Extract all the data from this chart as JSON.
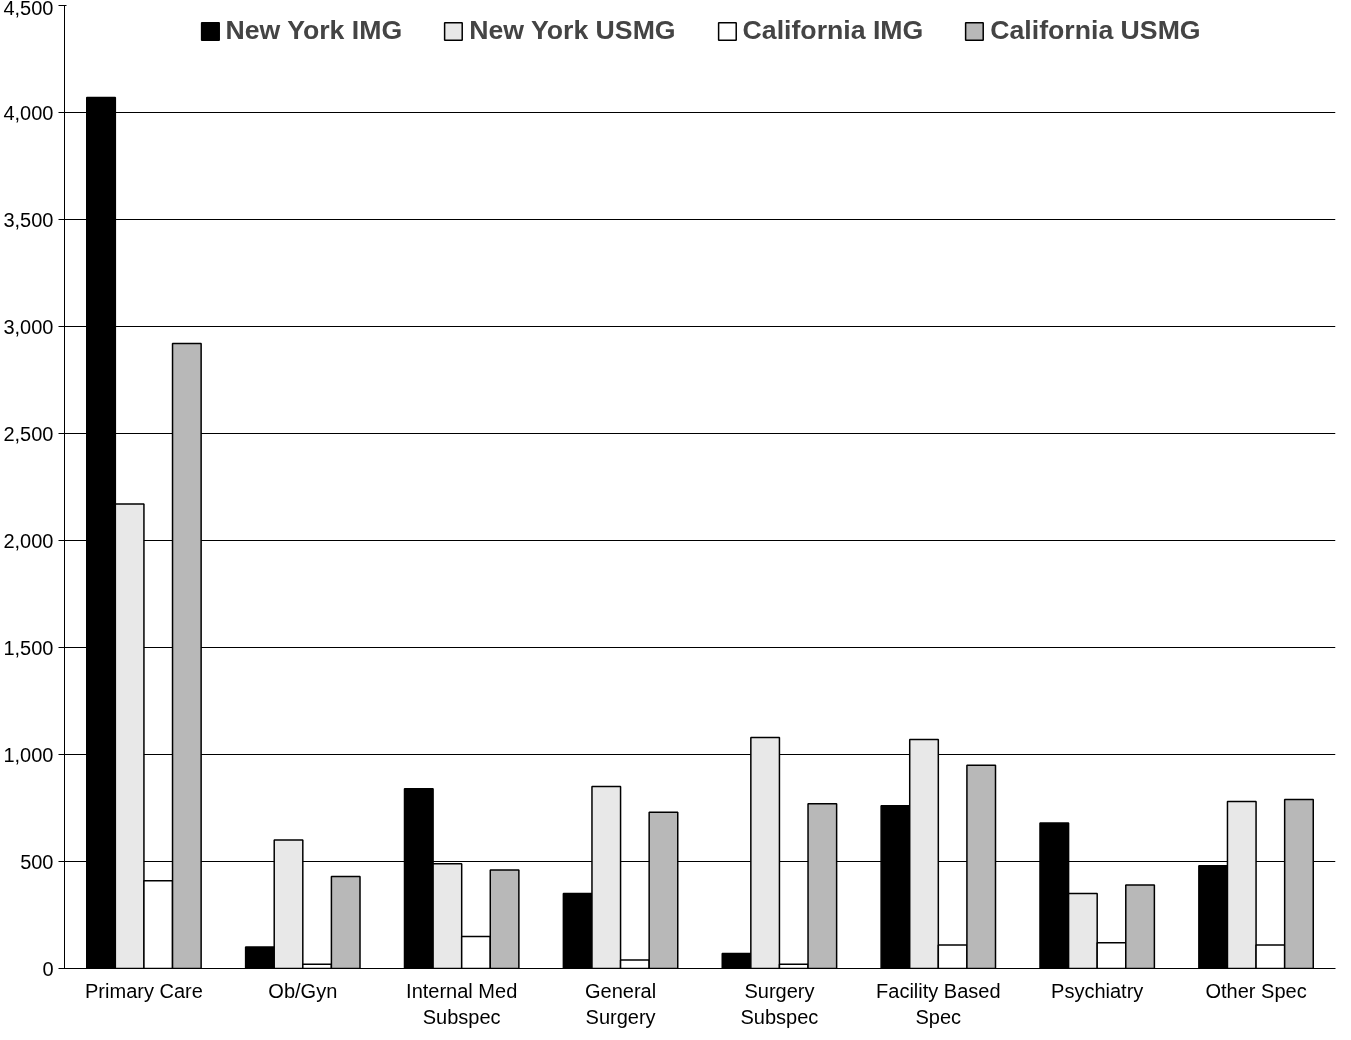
{
  "chart_data": {
    "type": "bar",
    "categories": [
      "Primary Care",
      "Ob/Gyn",
      "Internal Med Subspec",
      "General Surgery",
      "Surgery Subspec",
      "Facility Based Spec",
      "Psychiatry",
      "Other Spec"
    ],
    "series": [
      {
        "name": "New York IMG",
        "color": "#000000",
        "values": [
          4070,
          100,
          840,
          350,
          70,
          760,
          680,
          480
        ]
      },
      {
        "name": "New York USMG",
        "color": "#e8e8e8",
        "values": [
          2170,
          600,
          490,
          850,
          1080,
          1070,
          350,
          780
        ]
      },
      {
        "name": "California IMG",
        "color": "#ffffff",
        "values": [
          410,
          20,
          150,
          40,
          20,
          110,
          120,
          110
        ]
      },
      {
        "name": "California USMG",
        "color": "#b8b8b8",
        "values": [
          2920,
          430,
          460,
          730,
          770,
          950,
          390,
          790
        ]
      }
    ],
    "ylim": [
      0,
      4500
    ],
    "yticks": [
      {
        "value": 0,
        "label": "0"
      },
      {
        "value": 500,
        "label": "500"
      },
      {
        "value": 1000,
        "label": "1,000"
      },
      {
        "value": 1500,
        "label": "1,500"
      },
      {
        "value": 2000,
        "label": "2,000"
      },
      {
        "value": 2500,
        "label": "2,500"
      },
      {
        "value": 3000,
        "label": "3,000"
      },
      {
        "value": 3500,
        "label": "3,500"
      },
      {
        "value": 4000,
        "label": "4,000"
      },
      {
        "value": 4500,
        "label": "4,500"
      }
    ],
    "grid": "y",
    "legend": "top"
  }
}
